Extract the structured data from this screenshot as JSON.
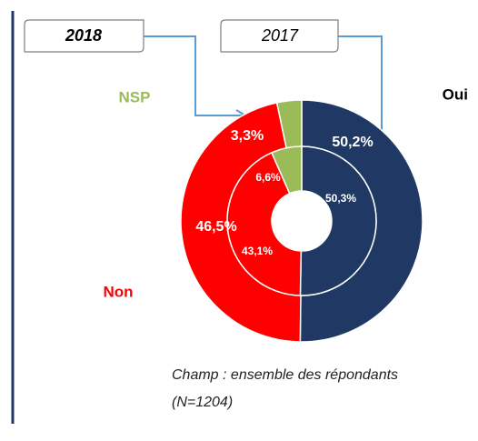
{
  "chart_data": {
    "type": "donut",
    "categories": [
      "Oui",
      "Non",
      "NSP"
    ],
    "colors": [
      "#1f3864",
      "#ff0000",
      "#9bbb59"
    ],
    "series": [
      {
        "name": "2018",
        "values": [
          50.2,
          46.5,
          3.3
        ],
        "value_labels": [
          "50,2%",
          "46,5%",
          "3,3%"
        ]
      },
      {
        "name": "2017",
        "values": [
          50.3,
          43.1,
          6.6
        ],
        "value_labels": [
          "50,3%",
          "43,1%",
          "6,6%"
        ]
      }
    ],
    "note": [
      "Champ : ensemble des répondants",
      "(N=1204)"
    ]
  }
}
